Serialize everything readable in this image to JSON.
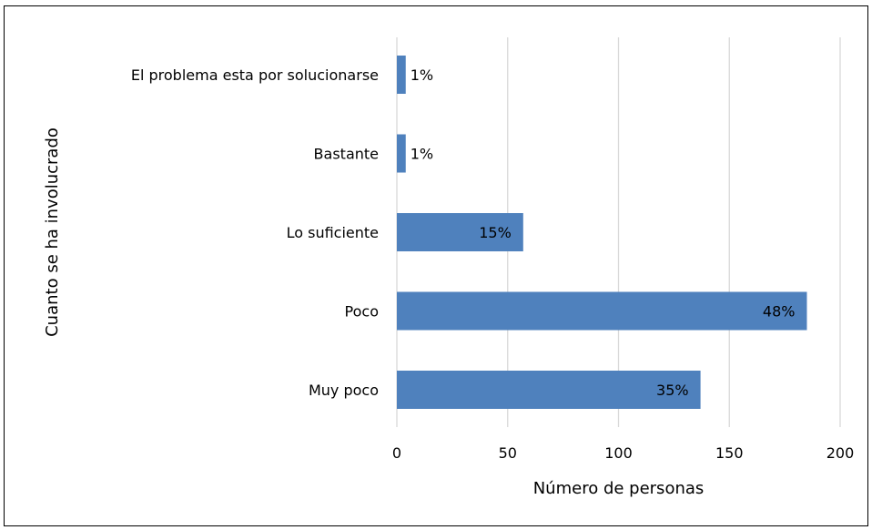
{
  "chart_data": {
    "type": "bar",
    "orientation": "horizontal",
    "title": "",
    "xlabel": "Número de personas",
    "ylabel": "Cuanto se ha involucrado",
    "categories": [
      "El problema esta por solucionarse",
      "Bastante",
      "Lo suficiente",
      "Poco",
      "Muy poco"
    ],
    "values": [
      4,
      4,
      57,
      185,
      137
    ],
    "data_labels": [
      "1%",
      "1%",
      "15%",
      "48%",
      "35%"
    ],
    "xlim": [
      0,
      200
    ],
    "xticks": [
      0,
      50,
      100,
      150,
      200
    ],
    "grid": "vertical",
    "legend": "none",
    "bar_color": "#4f81bd"
  }
}
